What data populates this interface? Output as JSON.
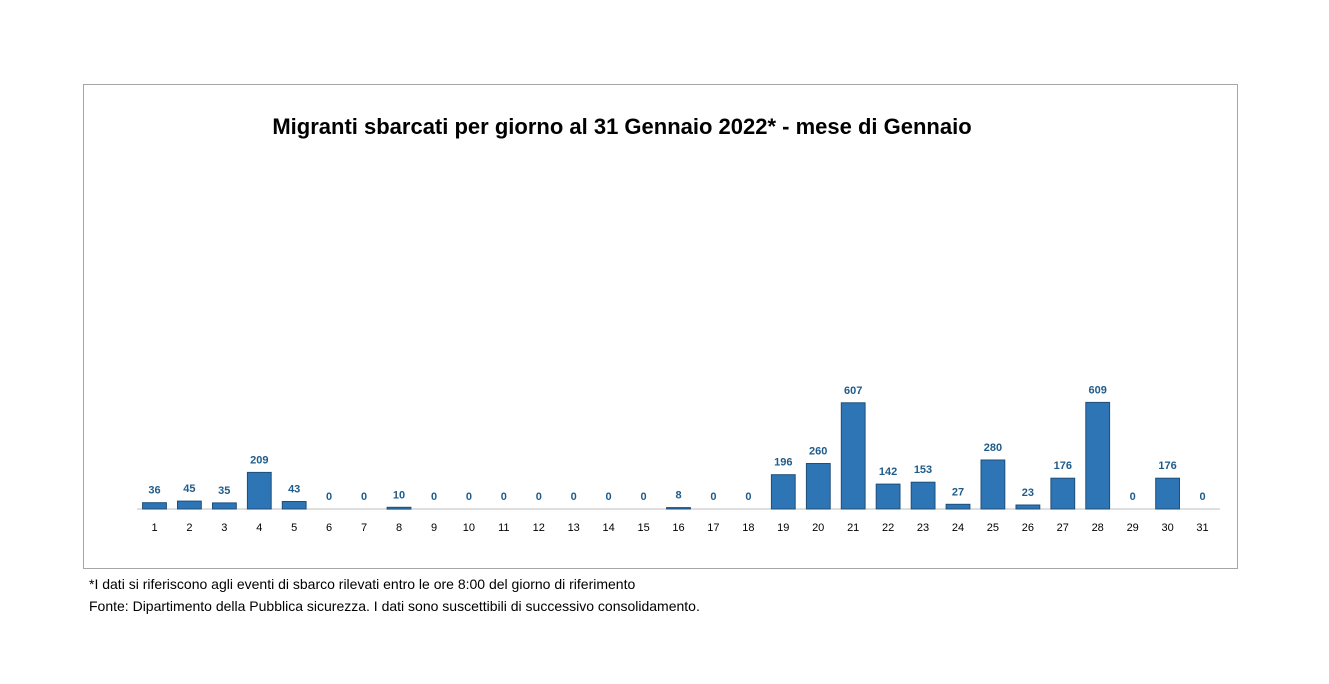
{
  "chart_data": {
    "type": "bar",
    "title": "Migranti sbarcati per giorno al 31 Gennaio 2022* - mese di Gennaio",
    "xlabel": "",
    "ylabel": "",
    "categories": [
      "1",
      "2",
      "3",
      "4",
      "5",
      "6",
      "7",
      "8",
      "9",
      "10",
      "11",
      "12",
      "13",
      "14",
      "15",
      "16",
      "17",
      "18",
      "19",
      "20",
      "21",
      "22",
      "23",
      "24",
      "25",
      "26",
      "27",
      "28",
      "29",
      "30",
      "31"
    ],
    "values": [
      36,
      45,
      35,
      209,
      43,
      0,
      0,
      10,
      0,
      0,
      0,
      0,
      0,
      0,
      0,
      8,
      0,
      0,
      196,
      260,
      607,
      142,
      153,
      27,
      280,
      23,
      176,
      609,
      0,
      176,
      0
    ],
    "ylim": [
      0,
      1800
    ],
    "grid": false,
    "data_labels": true,
    "bar_color": "#2e75b6",
    "label_color": "#1f5c8b"
  },
  "footnote": "*I dati si riferiscono agli eventi di sbarco rilevati entro le ore 8:00 del giorno di riferimento",
  "source": "Fonte: Dipartimento della Pubblica sicurezza. I dati sono suscettibili di successivo consolidamento."
}
